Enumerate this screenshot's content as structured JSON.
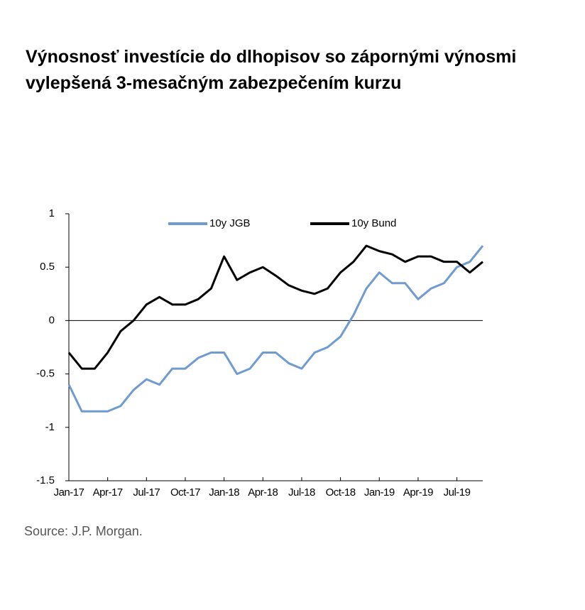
{
  "chart_data": {
    "type": "line",
    "title": "Výnosnosť investície do dlhopisov so zápornými výnosmi vylepšená 3-mesačným zabezpečením kurzu",
    "source": "Source: J.P. Morgan.",
    "categories": [
      "Jan-17",
      null,
      null,
      "Apr-17",
      null,
      null,
      "Jul-17",
      null,
      null,
      "Oct-17",
      null,
      null,
      "Jan-18",
      null,
      null,
      "Apr-18",
      null,
      null,
      "Jul-18",
      null,
      null,
      "Oct-18",
      null,
      null,
      "Jan-19",
      null,
      null,
      "Apr-19",
      null,
      null,
      "Jul-19",
      null,
      null
    ],
    "series": [
      {
        "name": "10y JGB",
        "color": "#6f9bd1",
        "values": [
          -0.6,
          -0.85,
          -0.85,
          -0.85,
          -0.8,
          -0.65,
          -0.55,
          -0.6,
          -0.45,
          -0.45,
          -0.35,
          -0.3,
          -0.3,
          -0.5,
          -0.45,
          -0.3,
          -0.3,
          -0.4,
          -0.45,
          -0.3,
          -0.25,
          -0.15,
          0.05,
          0.3,
          0.45,
          0.35,
          0.35,
          0.2,
          0.3,
          0.35,
          0.5,
          0.55,
          0.7
        ]
      },
      {
        "name": "10y Bund",
        "color": "#000000",
        "values": [
          -0.3,
          -0.45,
          -0.45,
          -0.3,
          -0.1,
          0.0,
          0.15,
          0.22,
          0.15,
          0.15,
          0.2,
          0.3,
          0.6,
          0.38,
          0.45,
          0.5,
          0.42,
          0.33,
          0.28,
          0.25,
          0.3,
          0.45,
          0.55,
          0.7,
          0.65,
          0.62,
          0.55,
          0.6,
          0.6,
          0.55,
          0.55,
          0.45,
          0.55
        ]
      }
    ],
    "ylim": [
      -1.5,
      1
    ],
    "yticks": [
      1,
      0.5,
      0,
      -0.5,
      -1,
      -1.5
    ],
    "legend": "top"
  }
}
